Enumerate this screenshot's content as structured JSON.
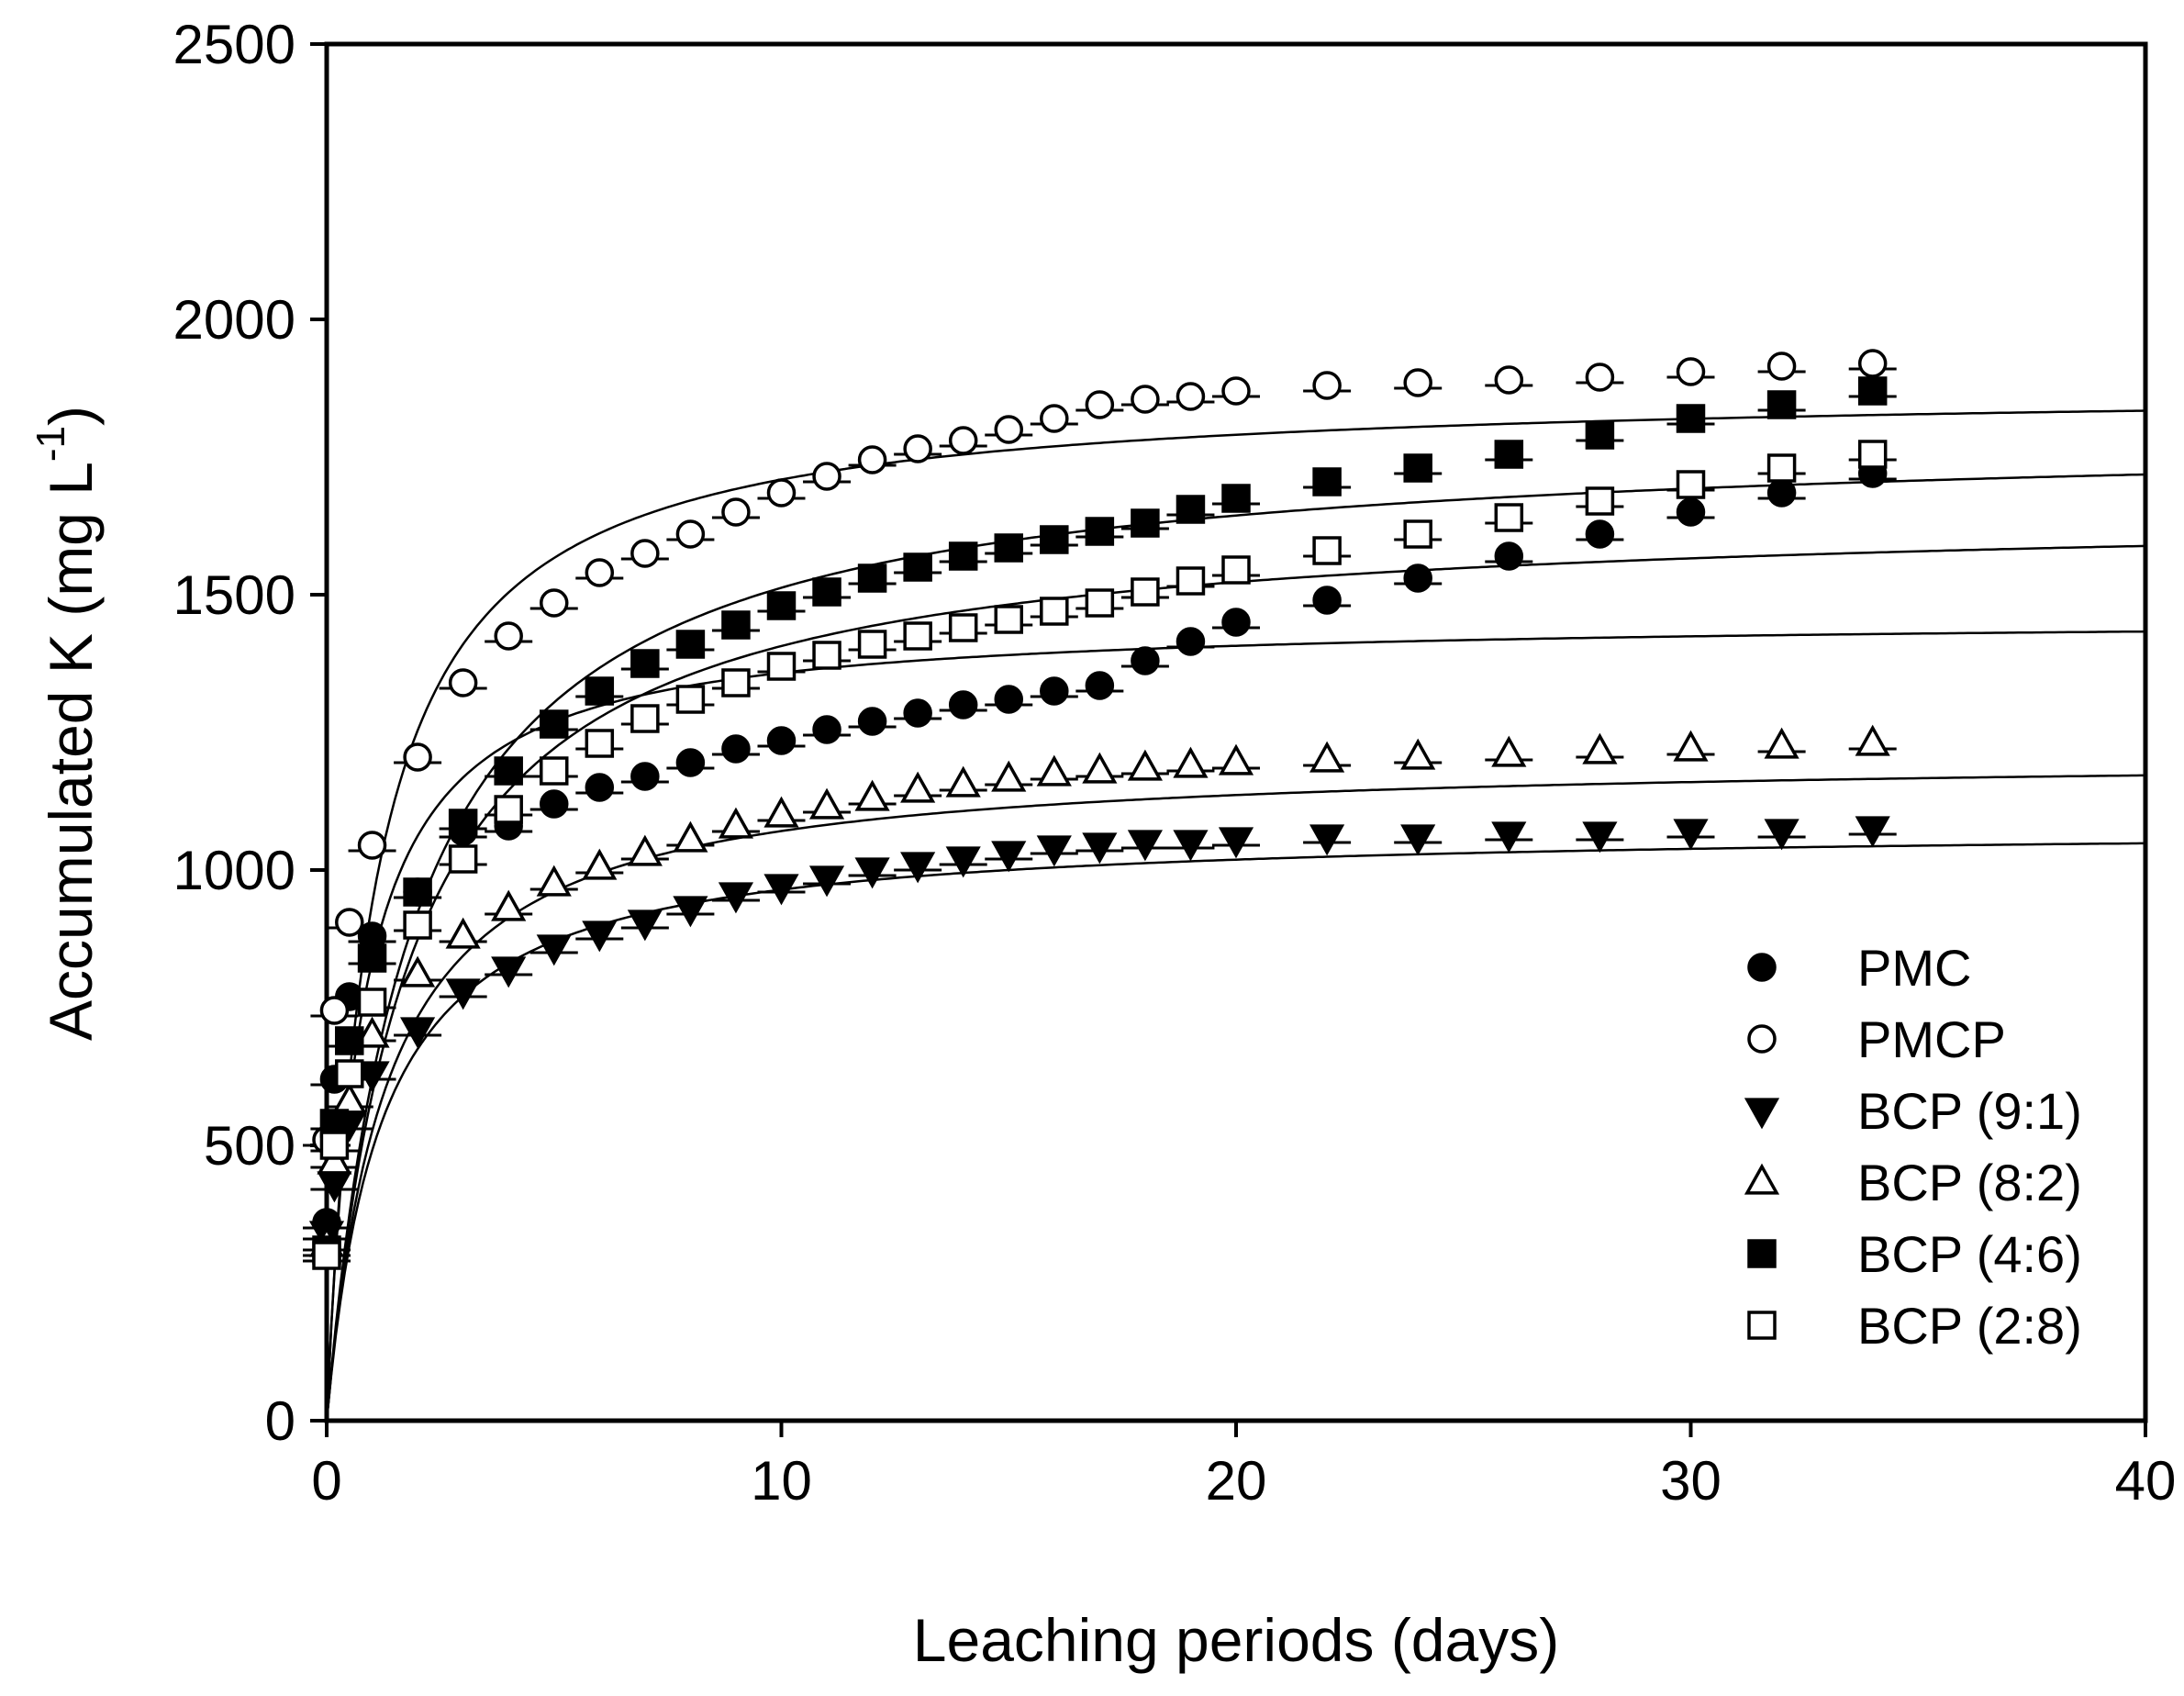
{
  "chart_data": {
    "type": "scatter",
    "title": "",
    "xlabel": "Leaching periods (days)",
    "ylabel": "Accumulated K (mg L",
    "ylabel_sup": "-1",
    "ylabel_close": ")",
    "xlim": [
      0,
      40
    ],
    "ylim": [
      0,
      2500
    ],
    "xticks": [
      0,
      10,
      20,
      30,
      40
    ],
    "yticks": [
      0,
      500,
      1000,
      1500,
      2000,
      2500
    ],
    "grid": false,
    "legend_position": "bottom-right",
    "series": [
      {
        "name": "PMC",
        "marker": "filled-circle",
        "color": "#000000",
        "fit": {
          "model": "hyperbolic",
          "qmax": 1460,
          "k": 0.75
        },
        "x": [
          0,
          0.17,
          0.5,
          1,
          2,
          3,
          4,
          5,
          6,
          7,
          8,
          9,
          10,
          11,
          12,
          13,
          14,
          15,
          16,
          17,
          18,
          19,
          20,
          22,
          24,
          26,
          28,
          30,
          32,
          34
        ],
        "y": [
          360,
          620,
          770,
          880,
          960,
          1070,
          1080,
          1120,
          1150,
          1170,
          1195,
          1220,
          1235,
          1255,
          1270,
          1285,
          1300,
          1310,
          1325,
          1335,
          1380,
          1415,
          1450,
          1490,
          1530,
          1570,
          1610,
          1650,
          1685,
          1720
        ]
      },
      {
        "name": "PMCP",
        "marker": "open-circle",
        "color": "#000000",
        "fit": {
          "model": "hyperbolic",
          "qmax": 1880,
          "k": 1.0
        },
        "x": [
          0,
          0.17,
          0.5,
          1,
          2,
          3,
          4,
          5,
          6,
          7,
          8,
          9,
          10,
          11,
          12,
          13,
          14,
          15,
          16,
          17,
          18,
          19,
          20,
          22,
          24,
          26,
          28,
          30,
          32,
          34
        ],
        "y": [
          510,
          745,
          905,
          1045,
          1205,
          1340,
          1425,
          1485,
          1540,
          1575,
          1610,
          1650,
          1685,
          1715,
          1745,
          1765,
          1780,
          1800,
          1820,
          1845,
          1855,
          1860,
          1870,
          1880,
          1885,
          1890,
          1895,
          1905,
          1915,
          1920
        ]
      },
      {
        "name": "BCP (9:1)",
        "marker": "filled-triangle-down",
        "color": "#000000",
        "fit": {
          "model": "hyperbolic",
          "qmax": 1080,
          "k": 1.2
        },
        "x": [
          0,
          0.17,
          0.5,
          1,
          2,
          3,
          4,
          5,
          6,
          7,
          8,
          9,
          10,
          11,
          12,
          13,
          14,
          15,
          16,
          17,
          18,
          19,
          20,
          22,
          24,
          26,
          28,
          30,
          32,
          34
        ],
        "y": [
          340,
          430,
          540,
          630,
          710,
          780,
          820,
          860,
          885,
          905,
          930,
          955,
          970,
          985,
          1000,
          1010,
          1020,
          1030,
          1040,
          1045,
          1050,
          1050,
          1055,
          1060,
          1060,
          1065,
          1065,
          1070,
          1070,
          1075
        ]
      },
      {
        "name": "BCP (8:2)",
        "marker": "open-triangle-up",
        "color": "#000000",
        "fit": {
          "model": "hyperbolic",
          "qmax": 1210,
          "k": 1.3
        },
        "x": [
          0,
          0.17,
          0.5,
          1,
          2,
          3,
          4,
          5,
          6,
          7,
          8,
          9,
          10,
          11,
          12,
          13,
          14,
          15,
          16,
          17,
          18,
          19,
          20,
          22,
          24,
          26,
          28,
          30,
          32,
          34
        ],
        "y": [
          320,
          470,
          580,
          700,
          810,
          880,
          930,
          975,
          1005,
          1030,
          1055,
          1080,
          1100,
          1115,
          1130,
          1145,
          1155,
          1165,
          1175,
          1180,
          1185,
          1190,
          1195,
          1200,
          1205,
          1210,
          1215,
          1220,
          1225,
          1230
        ]
      },
      {
        "name": "BCP (4:6)",
        "marker": "filled-square",
        "color": "#000000",
        "fit": {
          "model": "hyperbolic",
          "qmax": 1800,
          "k": 1.9
        },
        "x": [
          0,
          0.17,
          0.5,
          1,
          2,
          3,
          4,
          5,
          6,
          7,
          8,
          9,
          10,
          11,
          12,
          13,
          14,
          15,
          16,
          17,
          18,
          19,
          20,
          22,
          24,
          26,
          28,
          30,
          32,
          34
        ],
        "y": [
          310,
          540,
          690,
          840,
          960,
          1085,
          1180,
          1265,
          1325,
          1375,
          1410,
          1445,
          1480,
          1505,
          1530,
          1550,
          1570,
          1585,
          1600,
          1615,
          1630,
          1655,
          1675,
          1705,
          1730,
          1755,
          1790,
          1820,
          1845,
          1870
        ]
      },
      {
        "name": "BCP (2:8)",
        "marker": "open-square",
        "color": "#000000",
        "fit": {
          "model": "hyperbolic",
          "qmax": 1660,
          "k": 1.8
        },
        "x": [
          0,
          0.17,
          0.5,
          1,
          2,
          3,
          4,
          5,
          6,
          7,
          8,
          9,
          10,
          11,
          12,
          13,
          14,
          15,
          16,
          17,
          18,
          19,
          20,
          22,
          24,
          26,
          28,
          30,
          32,
          34
        ],
        "y": [
          300,
          500,
          630,
          760,
          900,
          1020,
          1110,
          1180,
          1230,
          1275,
          1310,
          1340,
          1370,
          1390,
          1410,
          1425,
          1440,
          1455,
          1470,
          1485,
          1505,
          1525,
          1545,
          1580,
          1610,
          1640,
          1670,
          1700,
          1730,
          1755
        ]
      }
    ]
  }
}
